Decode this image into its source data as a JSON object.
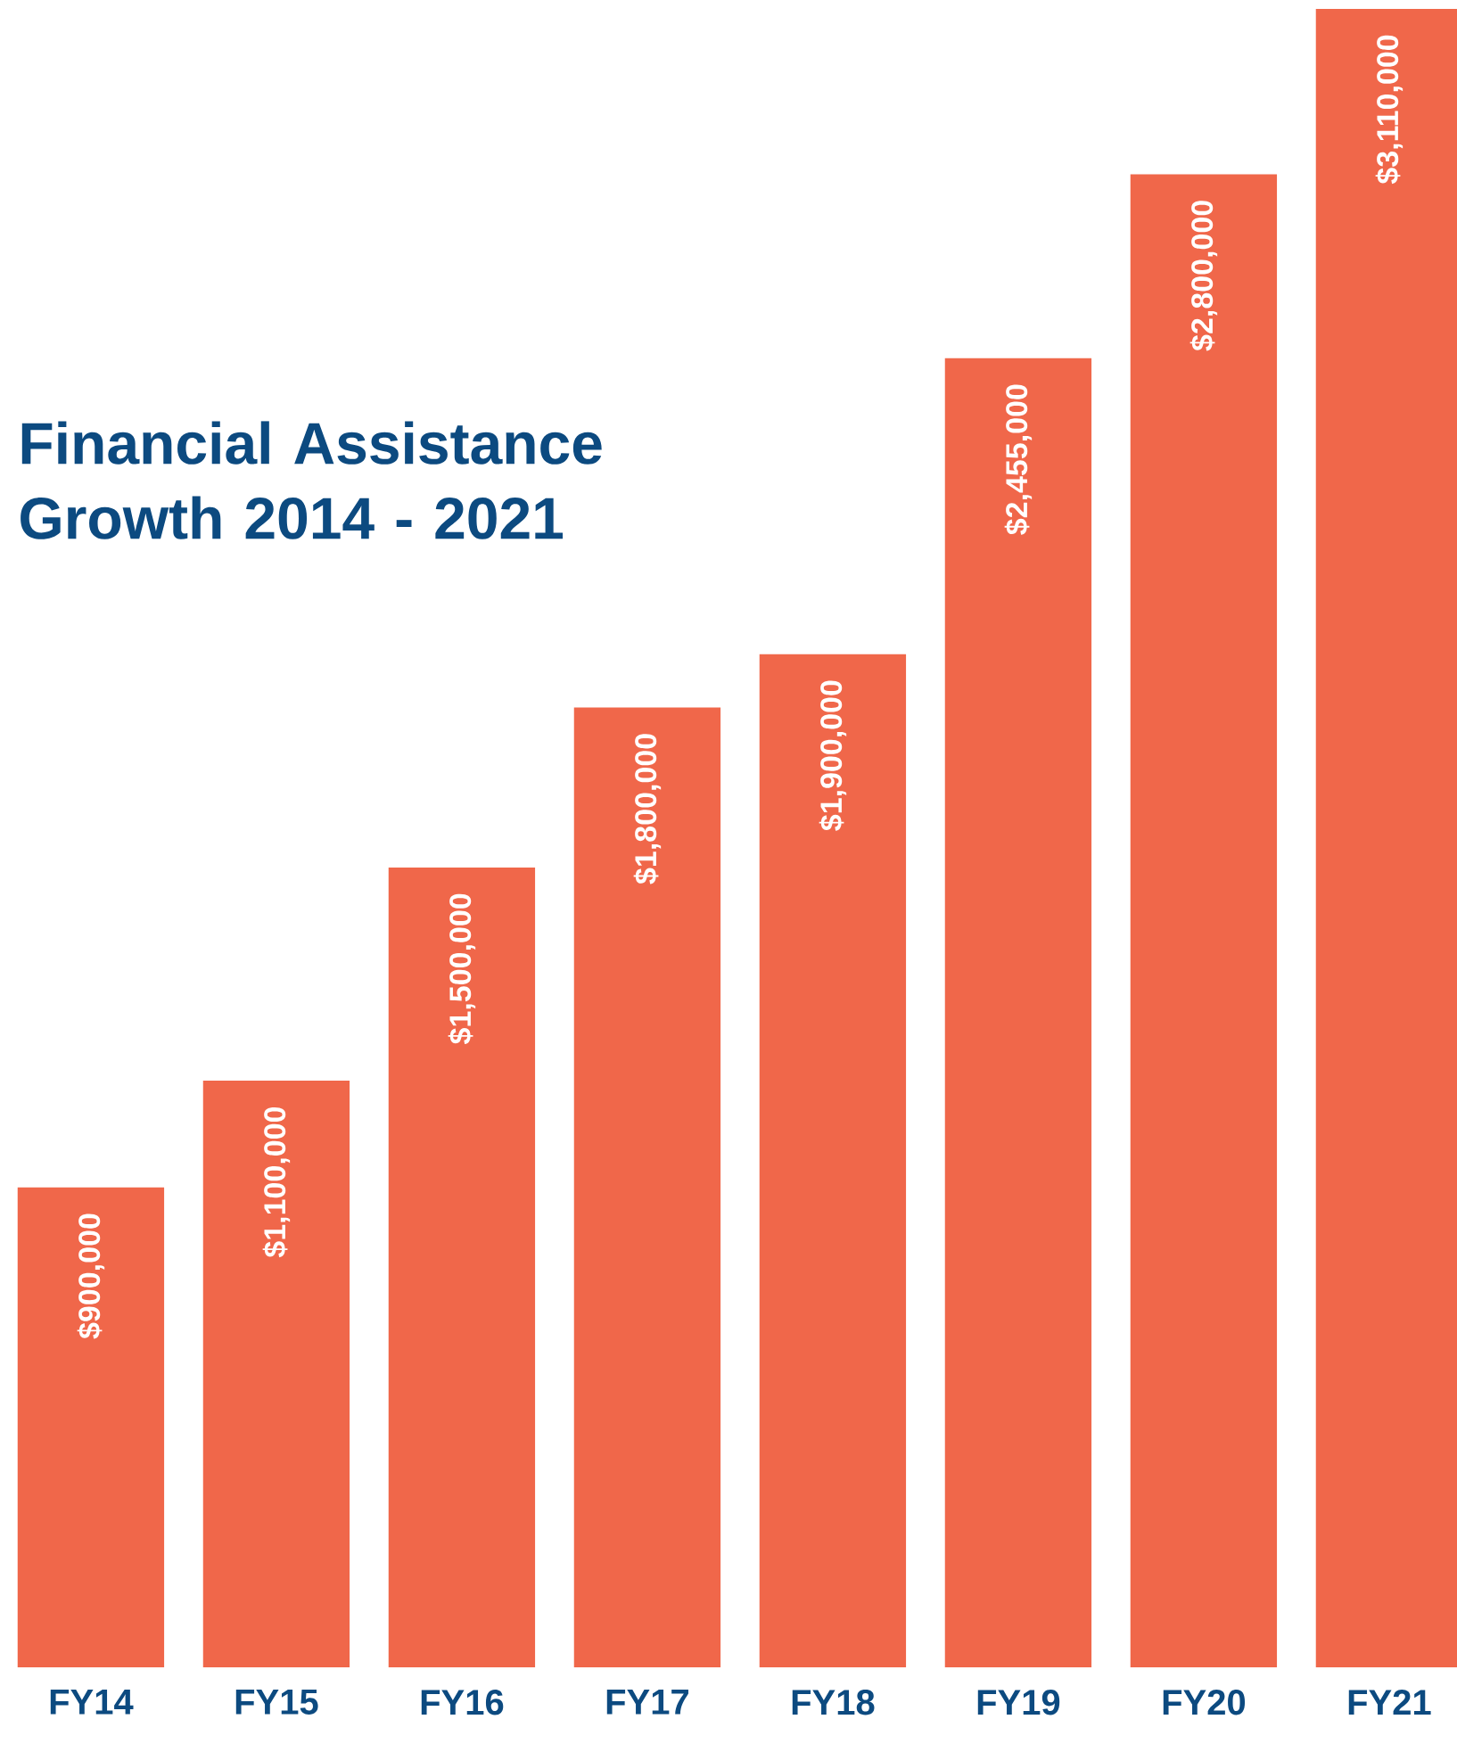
{
  "chart_data": {
    "type": "bar",
    "title": "Financial Assistance Growth 2014 - 2021",
    "categories": [
      "FY14",
      "FY15",
      "FY16",
      "FY17",
      "FY18",
      "FY19",
      "FY20",
      "FY21"
    ],
    "values": [
      900000,
      1100000,
      1500000,
      1800000,
      1900000,
      2455000,
      2800000,
      3110000
    ],
    "value_labels": [
      "$900,000",
      "$1,100,000",
      "$1,500,000",
      "$1,800,000",
      "$1,900,000",
      "$2,455,000",
      "$2,800,000",
      "$3,110,000"
    ],
    "color": "#f0674a"
  }
}
